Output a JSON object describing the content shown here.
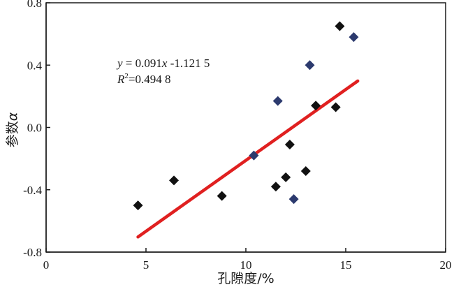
{
  "chart_data": {
    "type": "scatter",
    "xlabel": "孔隙度/%",
    "ylabel_main": "参数",
    "ylabel_symbol": "α",
    "xlim": [
      0,
      20
    ],
    "ylim": [
      -0.8,
      0.8
    ],
    "x_ticks": [
      0,
      5,
      10,
      15,
      20
    ],
    "x_tick_labels": [
      "0",
      "5",
      "10",
      "15",
      "20"
    ],
    "y_ticks": [
      -0.8,
      -0.4,
      0.0,
      0.4,
      0.8
    ],
    "y_tick_labels": [
      "-0.8",
      "-0.4",
      "0.0",
      "0.4",
      "0.8"
    ],
    "grid": false,
    "series": [
      {
        "color": "#111111",
        "marker": "diamond",
        "points": [
          [
            4.6,
            -0.5
          ],
          [
            6.4,
            -0.34
          ],
          [
            8.8,
            -0.44
          ],
          [
            11.5,
            -0.38
          ],
          [
            12.0,
            -0.32
          ],
          [
            12.2,
            -0.11
          ],
          [
            13.0,
            -0.28
          ],
          [
            13.5,
            0.14
          ],
          [
            14.5,
            0.13
          ],
          [
            14.7,
            0.65
          ]
        ]
      },
      {
        "color": "#2c3a6e",
        "marker": "diamond",
        "points": [
          [
            10.4,
            -0.18
          ],
          [
            11.6,
            0.17
          ],
          [
            12.4,
            -0.46
          ],
          [
            13.2,
            0.4
          ],
          [
            15.4,
            0.58
          ]
        ]
      }
    ],
    "fit_line": {
      "color": "#e02020",
      "slope": 0.091,
      "intercept": -1.1215,
      "x_range": [
        4.6,
        15.6
      ]
    },
    "annotation": {
      "eq_y": "y",
      "eq_mid": " = 0.091",
      "eq_x": "x",
      "eq_rest": " -1.121 5",
      "r2_R": "R",
      "r2_sup": "2",
      "r2_value": "=0.494 8"
    }
  }
}
